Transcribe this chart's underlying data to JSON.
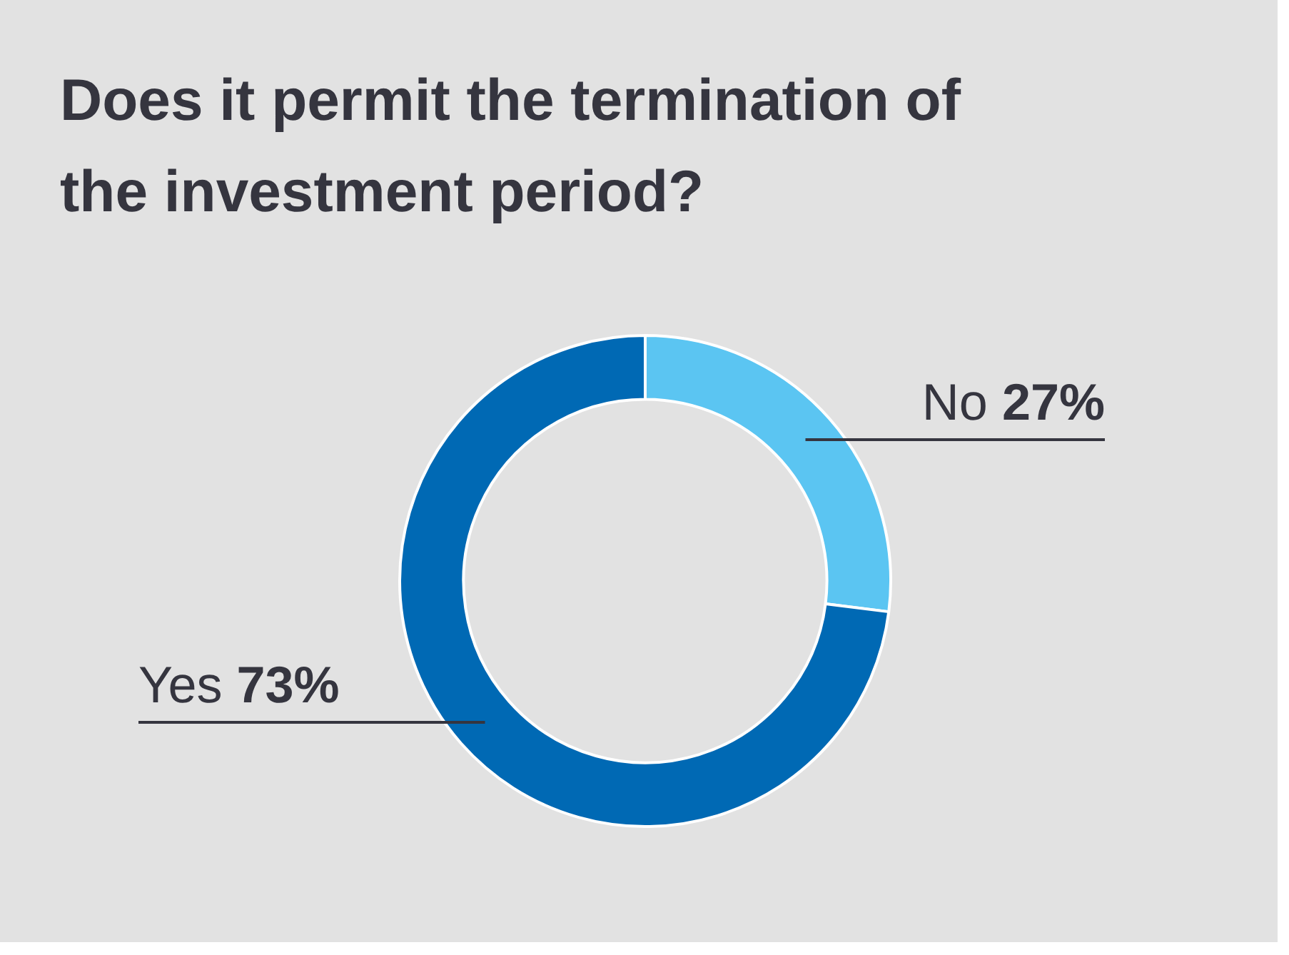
{
  "chart_data": {
    "type": "donut",
    "title": "Does it permit the termination of the investment period?",
    "categories": [
      "No",
      "Yes"
    ],
    "values": [
      27,
      73
    ],
    "colors": [
      "#5bc5f2",
      "#0069b4"
    ],
    "value_labels": [
      "27%",
      "73%"
    ],
    "legend": false
  }
}
